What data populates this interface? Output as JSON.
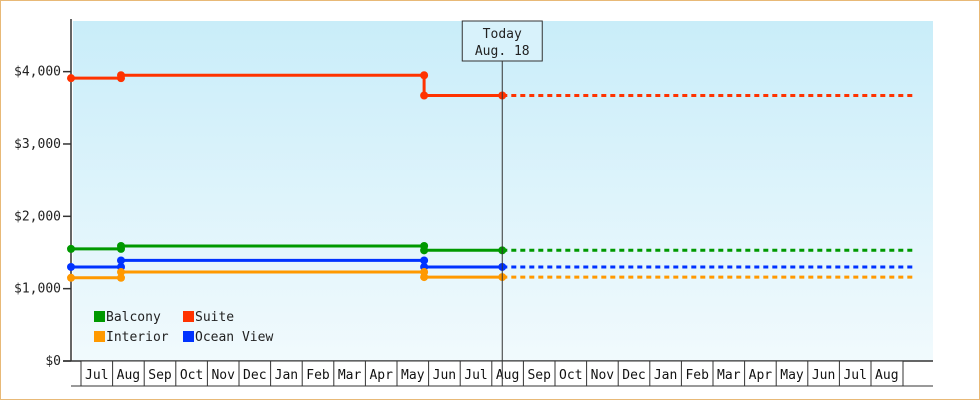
{
  "chart_data": {
    "type": "line",
    "step": true,
    "x_axis_months": [
      "Jul",
      "Aug",
      "Sep",
      "Oct",
      "Nov",
      "Dec",
      "Jan",
      "Feb",
      "Mar",
      "Apr",
      "May",
      "Jun",
      "Jul",
      "Aug",
      "Sep",
      "Oct",
      "Nov",
      "Dec",
      "Jan",
      "Feb",
      "Mar",
      "Apr",
      "May",
      "Jun",
      "Jul",
      "Aug"
    ],
    "y_ticks": [
      {
        "value": 0,
        "label": "$0"
      },
      {
        "value": 1000,
        "label": "$1,000"
      },
      {
        "value": 2000,
        "label": "$2,000"
      },
      {
        "value": 3000,
        "label": "$3,000"
      },
      {
        "value": 4000,
        "label": "$4,000"
      }
    ],
    "ylim": [
      0,
      4700
    ],
    "xlim": [
      0,
      27
    ],
    "today": {
      "line1": "Today",
      "line2": "Aug. 18",
      "x": 13.8
    },
    "legend_position": "bottom-left",
    "series": [
      {
        "name": "Suite",
        "color": "#ff3300",
        "points": [
          [
            0,
            3910
          ],
          [
            1.6,
            3910
          ],
          [
            1.6,
            3950
          ],
          [
            11.3,
            3950
          ],
          [
            11.3,
            3670
          ],
          [
            13.8,
            3670
          ]
        ],
        "projection": [
          [
            13.8,
            3670
          ],
          [
            27,
            3670
          ]
        ]
      },
      {
        "name": "Balcony",
        "color": "#009900",
        "points": [
          [
            0,
            1550
          ],
          [
            1.6,
            1550
          ],
          [
            1.6,
            1590
          ],
          [
            11.3,
            1590
          ],
          [
            11.3,
            1530
          ],
          [
            13.8,
            1530
          ]
        ],
        "projection": [
          [
            13.8,
            1530
          ],
          [
            27,
            1530
          ]
        ]
      },
      {
        "name": "Ocean View",
        "color": "#0033ff",
        "points": [
          [
            0,
            1300
          ],
          [
            1.6,
            1300
          ],
          [
            1.6,
            1390
          ],
          [
            11.3,
            1390
          ],
          [
            11.3,
            1300
          ],
          [
            13.8,
            1300
          ]
        ],
        "projection": [
          [
            13.8,
            1300
          ],
          [
            27,
            1300
          ]
        ]
      },
      {
        "name": "Interior",
        "color": "#ff9900",
        "points": [
          [
            0,
            1150
          ],
          [
            1.6,
            1150
          ],
          [
            1.6,
            1230
          ],
          [
            11.3,
            1230
          ],
          [
            11.3,
            1160
          ],
          [
            13.8,
            1160
          ]
        ],
        "projection": [
          [
            13.8,
            1160
          ],
          [
            27,
            1160
          ]
        ]
      }
    ],
    "legend_order": [
      "Balcony",
      "Suite",
      "Interior",
      "Ocean View"
    ]
  }
}
